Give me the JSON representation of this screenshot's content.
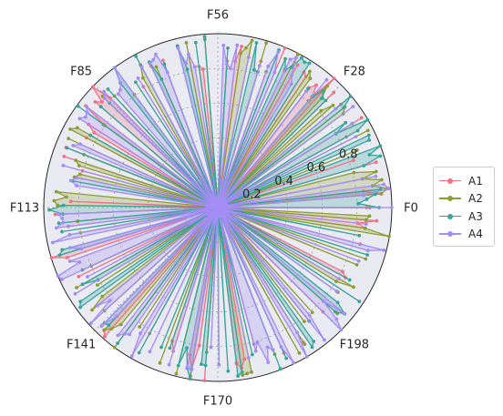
{
  "chart_data": {
    "type": "polar-radar",
    "n_points": 225,
    "r_range": [
      0,
      1
    ],
    "r_ticks": [
      0.2,
      0.4,
      0.6,
      0.8
    ],
    "theta_labels": [
      "F0",
      "F28",
      "F56",
      "F85",
      "F113",
      "F141",
      "F170",
      "F198"
    ],
    "grid": true,
    "legend_position": "right",
    "fill": true,
    "series": [
      {
        "name": "A1",
        "color": "#f07085",
        "seed": 11,
        "spike_prob": 0.33
      },
      {
        "name": "A2",
        "color": "#8c9e32",
        "seed": 23,
        "spike_prob": 0.3
      },
      {
        "name": "A3",
        "color": "#36a59a",
        "seed": 37,
        "spike_prob": 0.36
      },
      {
        "name": "A4",
        "color": "#a38cf4",
        "seed": 41,
        "spike_prob": 0.4
      }
    ]
  }
}
